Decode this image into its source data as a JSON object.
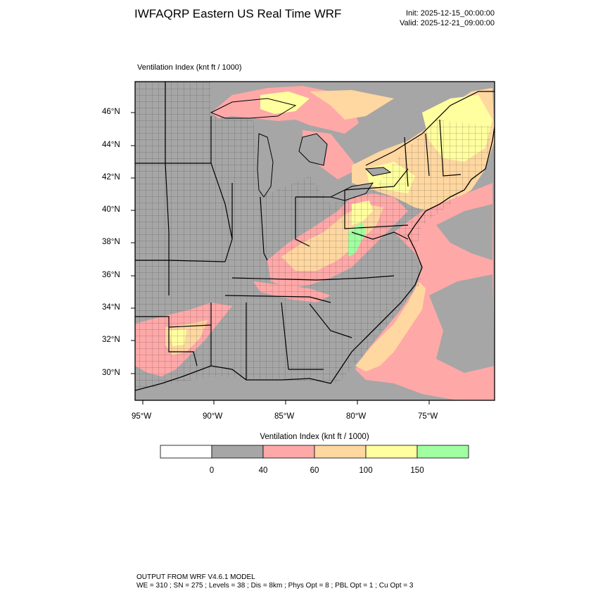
{
  "header": {
    "title": "IWFAQRP Eastern US Real Time WRF",
    "init": "Init: 2025-12-15_00:00:00",
    "valid": "Valid: 2025-12-21_09:00:00"
  },
  "map": {
    "field_title": "Ventilation Index   (knt ft / 1000)",
    "lat_labels": [
      "46°N",
      "44°N",
      "42°N",
      "40°N",
      "38°N",
      "36°N",
      "34°N",
      "32°N",
      "30°N"
    ],
    "lon_labels": [
      "95°W",
      "90°W",
      "85°W",
      "80°W",
      "75°W"
    ],
    "colors": {
      "land_low": "#a6a6a6",
      "bin_40_60": "#ffa8a8",
      "bin_60_100": "#ffd7a0",
      "bin_100_150": "#ffff9f",
      "bin_150_plus": "#a0ffa0",
      "water": "#a6a6a6"
    }
  },
  "legend": {
    "title": "Ventilation Index  (knt ft / 1000)",
    "tick_labels": [
      "0",
      "40",
      "60",
      "100",
      "150"
    ],
    "bins": [
      {
        "color": "#ffffff"
      },
      {
        "color": "#a6a6a6"
      },
      {
        "color": "#ffa8a8"
      },
      {
        "color": "#ffd7a0"
      },
      {
        "color": "#ffff9f"
      },
      {
        "color": "#a0ffa0"
      }
    ]
  },
  "footer": {
    "line1": "OUTPUT FROM WRF V4.6.1 MODEL",
    "line2": "WE = 310 ; SN = 275 ; Levels = 38 ; Dis = 8km ; Phys Opt = 8 ; PBL Opt = 1 ; Cu Opt = 3"
  }
}
